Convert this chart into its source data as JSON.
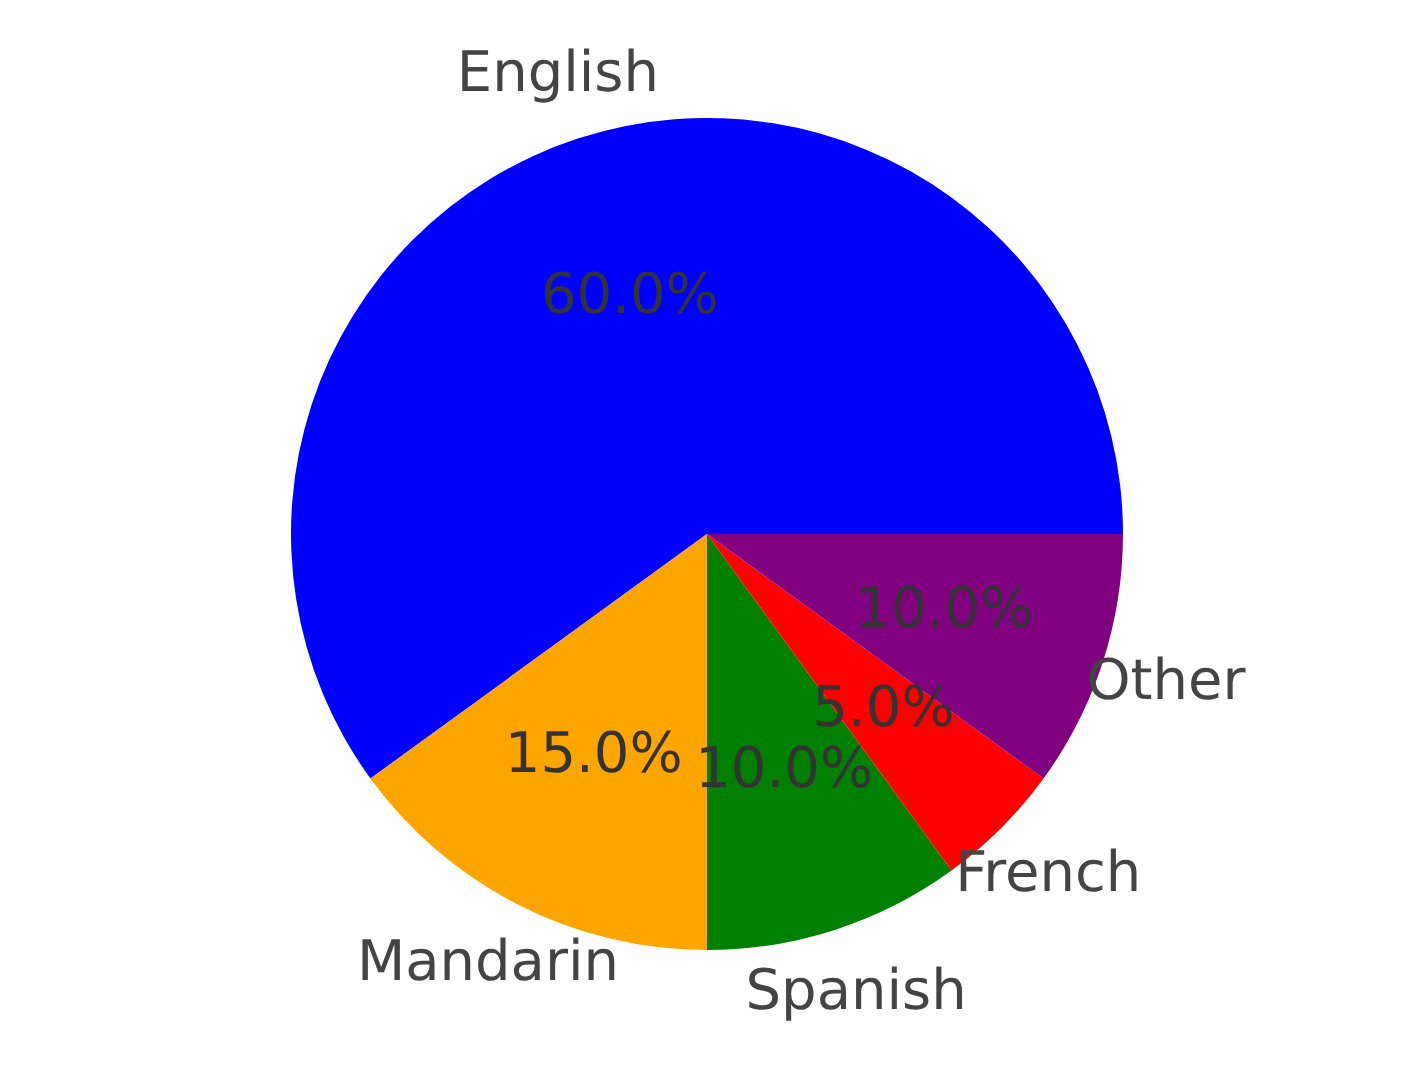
{
  "chart_data": {
    "type": "pie",
    "categories": [
      "English",
      "Mandarin",
      "Spanish",
      "French",
      "Other"
    ],
    "values": [
      60,
      15,
      10,
      5,
      10
    ],
    "colors": [
      "#0000ff",
      "#ffa500",
      "#008000",
      "#ff0000",
      "#800080"
    ],
    "value_labels": [
      "60.0%",
      "15.0%",
      "10.0%",
      "5.0%",
      "10.0%"
    ]
  }
}
